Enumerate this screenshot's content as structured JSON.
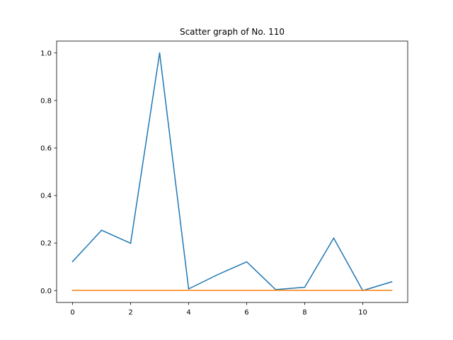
{
  "chart_data": {
    "type": "line",
    "title": "Scatter graph of No. 110",
    "xlabel": "",
    "ylabel": "",
    "xlim": [
      -0.55,
      11.55
    ],
    "ylim": [
      -0.05,
      1.05
    ],
    "x_ticks": [
      0,
      2,
      4,
      6,
      8,
      10
    ],
    "x_tick_labels": [
      "0",
      "2",
      "4",
      "6",
      "8",
      "10"
    ],
    "y_ticks": [
      0.0,
      0.2,
      0.4,
      0.6,
      0.8,
      1.0
    ],
    "y_tick_labels": [
      "0.0",
      "0.2",
      "0.4",
      "0.6",
      "0.8",
      "1.0"
    ],
    "grid": false,
    "legend": false,
    "x": [
      0,
      1,
      2,
      3,
      4,
      5,
      6,
      7,
      8,
      9,
      10,
      11
    ],
    "series": [
      {
        "color": "#1f77b4",
        "values": [
          0.122,
          0.254,
          0.199,
          1.0,
          0.007,
          0.067,
          0.121,
          0.004,
          0.014,
          0.221,
          0.0,
          0.037
        ]
      },
      {
        "color": "#ff7f0e",
        "values": [
          0.001,
          0.001,
          0.001,
          0.001,
          0.001,
          0.001,
          0.001,
          0.001,
          0.001,
          0.001,
          0.001,
          0.001
        ]
      }
    ]
  }
}
